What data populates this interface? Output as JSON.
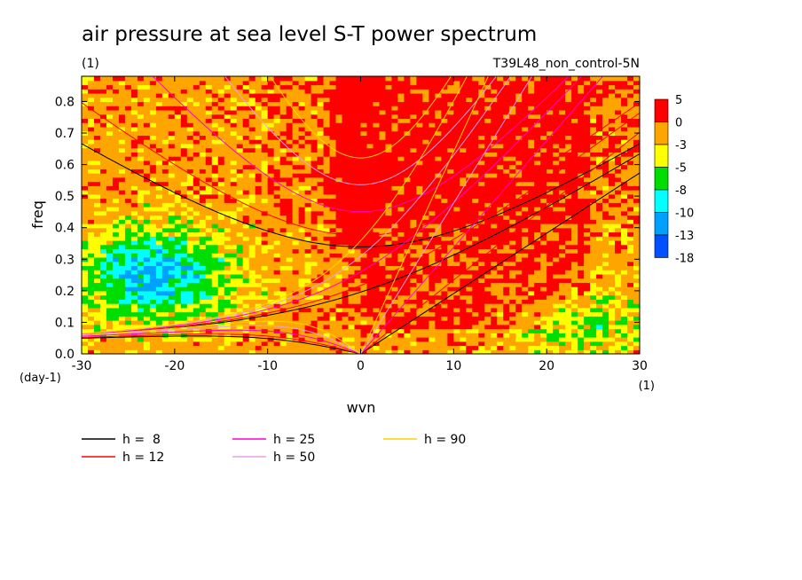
{
  "chart_data": {
    "type": "heatmap",
    "title": "air pressure at sea level S-T power spectrum",
    "subtitle": "(1)",
    "run_label": "T39L48_non_control-5N",
    "xlabel": "wvn",
    "ylabel": "freq",
    "x_unit": "(1)",
    "y_unit": "(day-1)",
    "xlim": [
      -30,
      30
    ],
    "ylim": [
      0,
      0.88
    ],
    "x_ticks": [
      -30,
      -20,
      -10,
      0,
      10,
      20,
      30
    ],
    "x_tick_labels": [
      "-30",
      "-20",
      "-10",
      "0",
      "10",
      "20",
      "30"
    ],
    "y_ticks": [
      0,
      0.1,
      0.2,
      0.3,
      0.4,
      0.5,
      0.6,
      0.7,
      0.8
    ],
    "y_tick_labels": [
      "0.0",
      "0.1",
      "0.2",
      "0.3",
      "0.4",
      "0.5",
      "0.6",
      "0.7",
      "0.8"
    ],
    "colorbar": {
      "labels": [
        "5",
        "0",
        "-3",
        "-5",
        "-8",
        "-10",
        "-13",
        "-18"
      ],
      "colors": [
        "#ff0000",
        "#ffa500",
        "#ffff00",
        "#00dd00",
        "#00ffff",
        "#00a0ff",
        "#0050ff"
      ]
    },
    "field": {
      "levels": [
        -13,
        -10,
        -8,
        -5,
        -3,
        0
      ],
      "level_colors": [
        "#0050ff",
        "#00a0ff",
        "#00ffff",
        "#00dd00",
        "#ffff00",
        "#ffa500",
        "#ff0000"
      ]
    },
    "series": [
      {
        "name": "h =  8",
        "color": "#000000",
        "equivalent_depth": 8
      },
      {
        "name": "h = 12",
        "color": "#ff0000",
        "equivalent_depth": 12
      },
      {
        "name": "h = 25",
        "color": "#ff00cc",
        "equivalent_depth": 25
      },
      {
        "name": "h = 50",
        "color": "#e8a0e8",
        "equivalent_depth": 50
      },
      {
        "name": "h = 90",
        "color": "#ffd200",
        "equivalent_depth": 90
      }
    ],
    "grid": false,
    "legend_position": "bottom"
  }
}
